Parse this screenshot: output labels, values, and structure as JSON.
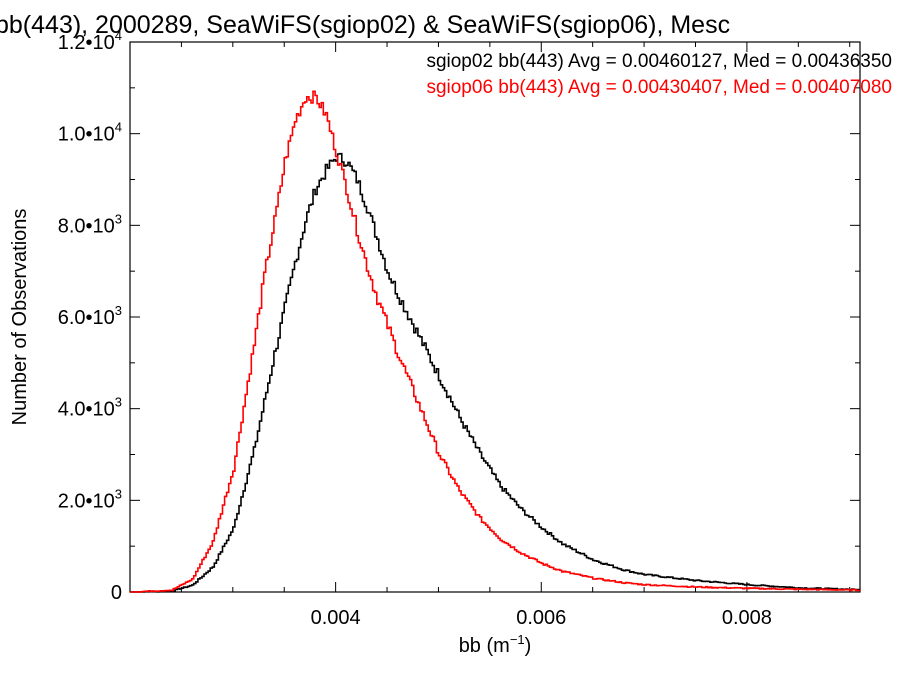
{
  "chart_data": {
    "type": "line",
    "title": "bb(443), 2000289, SeaWiFS(sgiop02) & SeaWiFS(sgiop06), Mesc",
    "xlabel": {
      "main": "bb (m",
      "sup": "−1",
      "close": ")"
    },
    "ylabel": "Number of Observations",
    "xlim": [
      0.002,
      0.0091
    ],
    "ylim": [
      0,
      12000
    ],
    "x_ticks": [
      {
        "value": 0.004,
        "label": "0.004"
      },
      {
        "value": 0.006,
        "label": "0.006"
      },
      {
        "value": 0.008,
        "label": "0.008"
      }
    ],
    "y_ticks": [
      {
        "value": 0,
        "base": "0",
        "exp": ""
      },
      {
        "value": 2000,
        "base": "2.0•10",
        "exp": "3"
      },
      {
        "value": 4000,
        "base": "4.0•10",
        "exp": "3"
      },
      {
        "value": 6000,
        "base": "6.0•10",
        "exp": "3"
      },
      {
        "value": 8000,
        "base": "8.0•10",
        "exp": "3"
      },
      {
        "value": 10000,
        "base": "1.0•10",
        "exp": "4"
      },
      {
        "value": 12000,
        "base": "1.2•10",
        "exp": "4"
      }
    ],
    "legend_position": "top-right",
    "series": [
      {
        "name": "sgiop02 bb(443) Avg = 0.00460127, Med = 0.00436350",
        "color": "#000000",
        "x": [
          0.002,
          0.0024,
          0.0026,
          0.0028,
          0.003,
          0.0032,
          0.0034,
          0.0035,
          0.0036,
          0.0037,
          0.0038,
          0.0039,
          0.004,
          0.0041,
          0.0042,
          0.0043,
          0.0044,
          0.0045,
          0.0046,
          0.0048,
          0.005,
          0.0052,
          0.0054,
          0.0056,
          0.0058,
          0.006,
          0.0062,
          0.0065,
          0.0068,
          0.007,
          0.0075,
          0.008,
          0.0085,
          0.0091
        ],
        "y": [
          0,
          20,
          150,
          550,
          1400,
          3100,
          5200,
          6200,
          7200,
          8100,
          8800,
          9200,
          9500,
          9400,
          9000,
          8400,
          7700,
          7000,
          6500,
          5600,
          4700,
          3800,
          3000,
          2300,
          1800,
          1400,
          1050,
          700,
          480,
          380,
          250,
          160,
          90,
          50
        ]
      },
      {
        "name": "sgiop06 bb(443) Avg = 0.00430407, Med = 0.00407080",
        "color": "#ff0000",
        "x": [
          0.002,
          0.0024,
          0.0026,
          0.0028,
          0.003,
          0.0032,
          0.0033,
          0.0034,
          0.0035,
          0.0036,
          0.0037,
          0.0038,
          0.0039,
          0.004,
          0.0041,
          0.0042,
          0.0043,
          0.0044,
          0.0046,
          0.0048,
          0.005,
          0.0052,
          0.0054,
          0.0056,
          0.0058,
          0.006,
          0.0062,
          0.0065,
          0.0068,
          0.007,
          0.0075,
          0.008,
          0.0085,
          0.0091
        ],
        "y": [
          0,
          40,
          280,
          1100,
          2700,
          5400,
          6900,
          8100,
          9400,
          10300,
          10800,
          10800,
          10400,
          9600,
          8800,
          7900,
          7100,
          6400,
          5200,
          4100,
          3000,
          2200,
          1600,
          1150,
          850,
          620,
          450,
          300,
          200,
          160,
          110,
          80,
          60,
          40
        ]
      }
    ]
  }
}
